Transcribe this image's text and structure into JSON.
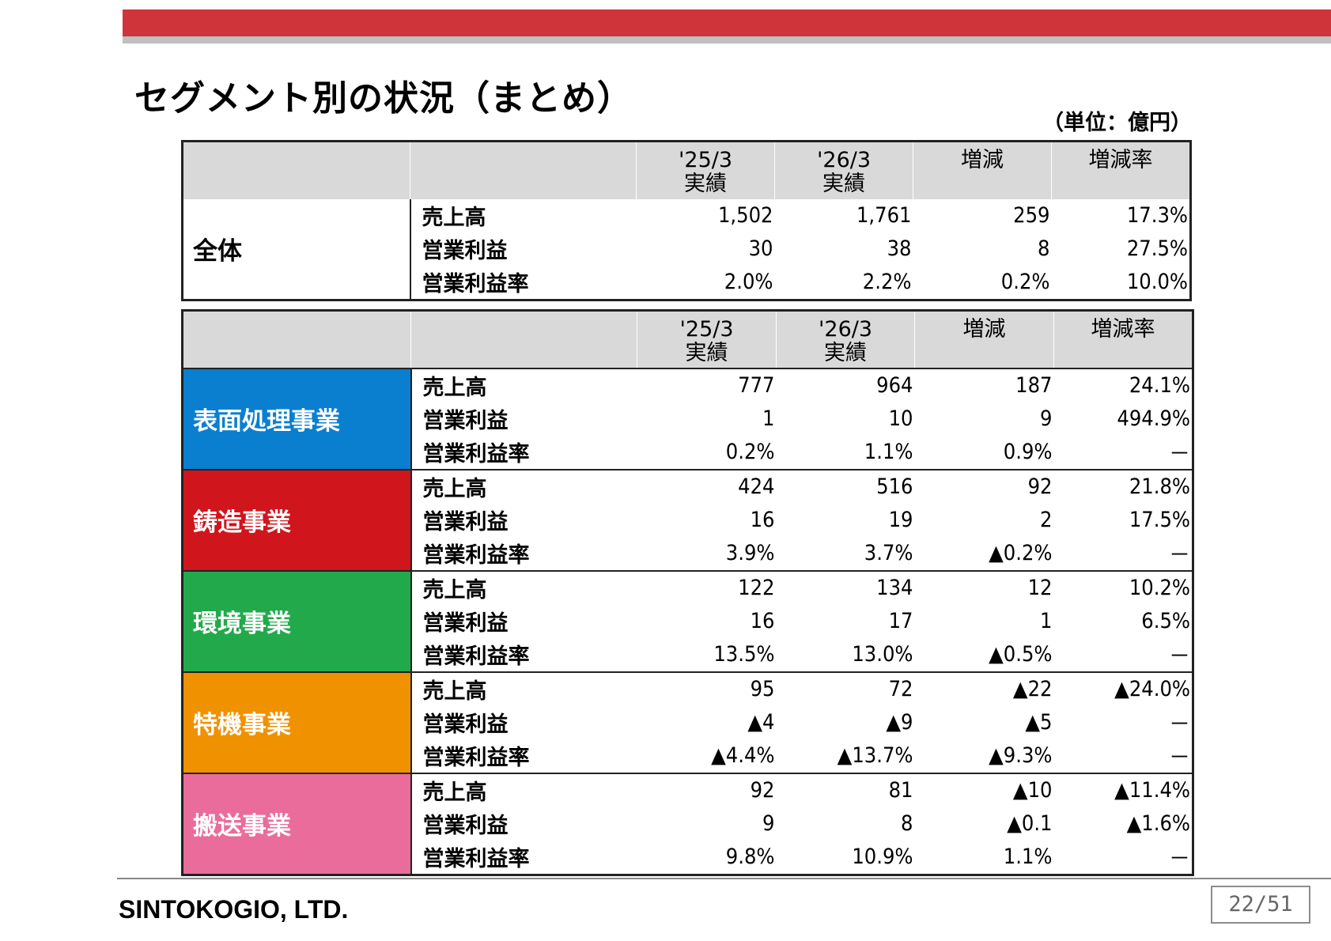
{
  "title": "セグメント別の状況（まとめ）",
  "unit": "（単位：億円）",
  "columns": {
    "prev_line1": "'25/3",
    "prev_line2": "実績",
    "curr_line1": "'26/3",
    "curr_line2": "実績",
    "change": "増減",
    "change_rate": "増減率"
  },
  "overall": {
    "name": "全体",
    "rows": [
      {
        "metric": "売上高",
        "prev": "1,502",
        "curr": "1,761",
        "change": "259",
        "rate": "17.3%"
      },
      {
        "metric": "営業利益",
        "prev": "30",
        "curr": "38",
        "change": "8",
        "rate": "27.5%"
      },
      {
        "metric": "営業利益率",
        "prev": "2.0%",
        "curr": "2.2%",
        "change": "0.2%",
        "rate": "10.0%"
      }
    ]
  },
  "segments": [
    {
      "name": "表面処理事業",
      "color": "#0a7fd0",
      "rows": [
        {
          "metric": "売上高",
          "prev": "777",
          "curr": "964",
          "change": "187",
          "rate": "24.1%"
        },
        {
          "metric": "営業利益",
          "prev": "1",
          "curr": "10",
          "change": "9",
          "rate": "494.9%"
        },
        {
          "metric": "営業利益率",
          "prev": "0.2%",
          "curr": "1.1%",
          "change": "0.9%",
          "rate": "－"
        }
      ]
    },
    {
      "name": "鋳造事業",
      "color": "#d0151d",
      "rows": [
        {
          "metric": "売上高",
          "prev": "424",
          "curr": "516",
          "change": "92",
          "rate": "21.8%"
        },
        {
          "metric": "営業利益",
          "prev": "16",
          "curr": "19",
          "change": "2",
          "rate": "17.5%"
        },
        {
          "metric": "営業利益率",
          "prev": "3.9%",
          "curr": "3.7%",
          "change": "▲0.2%",
          "rate": "－"
        }
      ]
    },
    {
      "name": "環境事業",
      "color": "#22a94b",
      "rows": [
        {
          "metric": "売上高",
          "prev": "122",
          "curr": "134",
          "change": "12",
          "rate": "10.2%"
        },
        {
          "metric": "営業利益",
          "prev": "16",
          "curr": "17",
          "change": "1",
          "rate": "6.5%"
        },
        {
          "metric": "営業利益率",
          "prev": "13.5%",
          "curr": "13.0%",
          "change": "▲0.5%",
          "rate": "－"
        }
      ]
    },
    {
      "name": "特機事業",
      "color": "#f09100",
      "rows": [
        {
          "metric": "売上高",
          "prev": "95",
          "curr": "72",
          "change": "▲22",
          "rate": "▲24.0%"
        },
        {
          "metric": "営業利益",
          "prev": "▲4",
          "curr": "▲9",
          "change": "▲5",
          "rate": "－"
        },
        {
          "metric": "営業利益率",
          "prev": "▲4.4%",
          "curr": "▲13.7%",
          "change": "▲9.3%",
          "rate": "－"
        }
      ]
    },
    {
      "name": "搬送事業",
      "color": "#ea6c9a",
      "rows": [
        {
          "metric": "売上高",
          "prev": "92",
          "curr": "81",
          "change": "▲10",
          "rate": "▲11.4%"
        },
        {
          "metric": "営業利益",
          "prev": "9",
          "curr": "8",
          "change": "▲0.1",
          "rate": "▲1.6%"
        },
        {
          "metric": "営業利益率",
          "prev": "9.8%",
          "curr": "10.9%",
          "change": "1.1%",
          "rate": "－"
        }
      ]
    }
  ],
  "footer": {
    "company": "SINTOKOGIO, LTD.",
    "page": "22/51"
  }
}
